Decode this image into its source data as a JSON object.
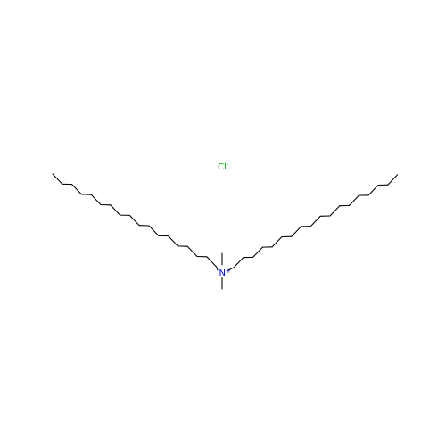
{
  "molecule": {
    "counter_ion": {
      "text": "Cl",
      "charge": "-",
      "color": "#00a000"
    },
    "nitrogen": {
      "text": "N",
      "charge": "+",
      "color": "#0000ff"
    }
  }
}
